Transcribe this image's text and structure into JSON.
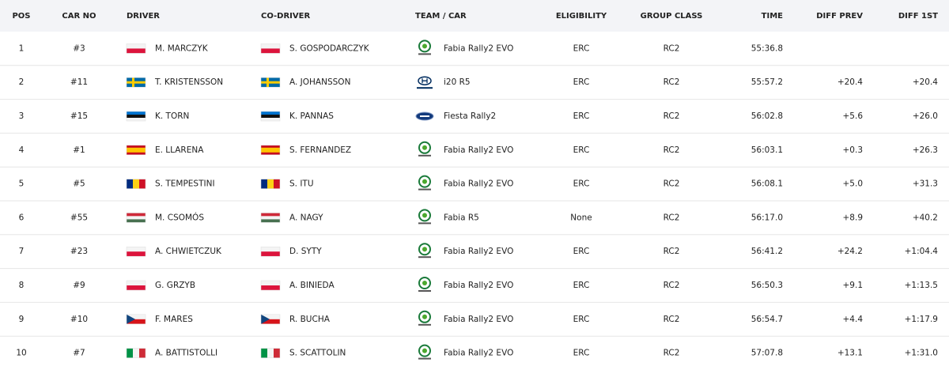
{
  "table": {
    "header": [
      "POS",
      "CAR NO",
      "DRIVER",
      "CO-DRIVER",
      "TEAM / CAR",
      "ELIGIBILITY",
      "GROUP CLASS",
      "TIME",
      "DIFF PREV",
      "DIFF 1ST"
    ],
    "rows": [
      {
        "pos": 1,
        "car_no": "#3",
        "driver": "M. MARCZYK",
        "co_driver": "S. GOSPODARCZYK",
        "car": "Fabia Rally2 EVO",
        "eligibility": "ERC",
        "group_class": "RC2",
        "time": "55:36.8"
      },
      {
        "pos": 2,
        "car_no": "#11",
        "driver": "T. KRISTENSSON",
        "co_driver": "A. JOHANSSON",
        "car": "i20 R5",
        "eligibility": "ERC",
        "group_class": "RC2",
        "time": "55:57.2",
        "diff_prev": "+20.4",
        "diff_1st": "+20.4"
      },
      {
        "pos": 3,
        "car_no": "#15",
        "driver": "K. TORN",
        "co_driver": "K. PANNAS",
        "car": "Fiesta Rally2",
        "eligibility": "ERC",
        "group_class": "RC2",
        "time": "56:02.8",
        "diff_prev": "+5.6",
        "diff_1st": "+26.0"
      },
      {
        "pos": 4,
        "car_no": "#1",
        "driver": "E. LLARENA",
        "co_driver": "S. FERNANDEZ",
        "car": "Fabia Rally2 EVO",
        "eligibility": "ERC",
        "group_class": "RC2",
        "time": "56:03.1",
        "diff_prev": "+0.3",
        "diff_1st": "+26.3"
      },
      {
        "pos": 5,
        "car_no": "#5",
        "driver": "S. TEMPESTINI",
        "co_driver": "S. ITU",
        "car": "Fabia Rally2 EVO",
        "eligibility": "ERC",
        "group_class": "RC2",
        "time": "56:08.1",
        "diff_prev": "+5.0",
        "diff_1st": "+31.3"
      },
      {
        "pos": 6,
        "car_no": "#55",
        "driver": "M. CSOMÓS",
        "co_driver": "A. NAGY",
        "car": "Fabia R5",
        "eligibility": "None",
        "group_class": "RC2",
        "time": "56:17.0",
        "diff_prev": "+8.9",
        "diff_1st": "+40.2"
      },
      {
        "pos": 7,
        "car_no": "#23",
        "driver": "A. CHWIETCZUK",
        "co_driver": "D. SYTY",
        "car": "Fabia Rally2 EVO",
        "eligibility": "ERC",
        "group_class": "RC2",
        "time": "56:41.2",
        "diff_prev": "+24.2",
        "diff_1st": "+1:04.4"
      },
      {
        "pos": 8,
        "car_no": "#9",
        "driver": "G. GRZYB",
        "co_driver": "A. BINIEDA",
        "car": "Fabia Rally2 EVO",
        "eligibility": "ERC",
        "group_class": "RC2",
        "time": "56:50.3",
        "diff_prev": "+9.1",
        "diff_1st": "+1:13.5"
      },
      {
        "pos": 9,
        "car_no": "#10",
        "driver": "F. MARES",
        "co_driver": "R. BUCHA",
        "car": "Fabia Rally2 EVO",
        "eligibility": "ERC",
        "group_class": "RC2",
        "time": "56:54.7",
        "diff_prev": "+4.4",
        "diff_1st": "+1:17.9"
      },
      {
        "pos": 10,
        "car_no": "#7",
        "driver": "A. BATTISTOLLI",
        "co_driver": "S. SCATTOLIN",
        "car": "Fabia Rally2 EVO",
        "eligibility": "ERC",
        "group_class": "RC2",
        "time": "57:07.8",
        "diff_prev": "+13.1",
        "diff_1st": "+1:31.0"
      }
    ]
  }
}
